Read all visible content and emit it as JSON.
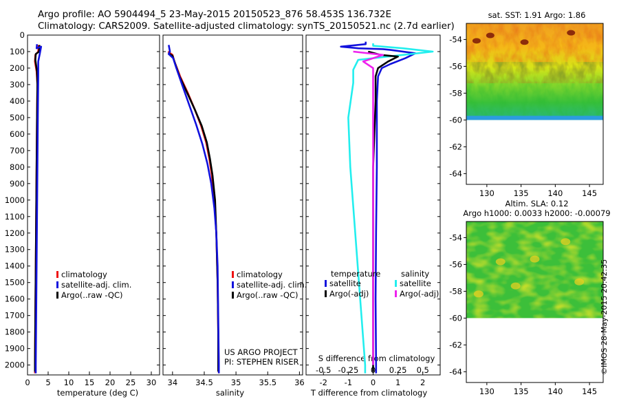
{
  "header": {
    "title_line1": "Argo profile: AO 5904494_5 23-May-2015 20150523_876 58.453S 136.732E",
    "title_line2": "Climatology: CARS2009. Satellite-adjusted climatology: synTS_20150521.nc (2.7d earlier)"
  },
  "credit": "©IMOS 28-May-2015 20:42:35",
  "colors": {
    "climatology": "#ee1111",
    "satellite": "#1111dd",
    "argo": "#000000",
    "sal_satellite": "#22eeee",
    "sal_argo": "#ee22ee"
  },
  "chart_data": [
    {
      "id": "temperature",
      "type": "line",
      "xlabel": "temperature (deg C)",
      "xlim": [
        0,
        32
      ],
      "xticks": [
        0,
        5,
        10,
        15,
        20,
        25,
        30
      ],
      "ylim": [
        2060,
        0
      ],
      "yticks": [
        0,
        100,
        200,
        300,
        400,
        500,
        600,
        700,
        800,
        900,
        1000,
        1100,
        1200,
        1300,
        1400,
        1500,
        1600,
        1700,
        1800,
        1900,
        2000
      ],
      "legend": [
        "climatology",
        "satellite-adj. clim.",
        "Argo(..raw -QC)"
      ],
      "series": [
        {
          "name": "climatology",
          "color": "#ee1111",
          "points": [
            [
              2.7,
              60
            ],
            [
              2.6,
              100
            ],
            [
              1.9,
              120
            ],
            [
              1.8,
              160
            ],
            [
              2.2,
              220
            ],
            [
              2.4,
              300
            ],
            [
              2.3,
              500
            ],
            [
              2.2,
              800
            ],
            [
              2.1,
              1100
            ],
            [
              2.0,
              1400
            ],
            [
              1.9,
              1700
            ],
            [
              1.8,
              2000
            ],
            [
              1.8,
              2050
            ]
          ]
        },
        {
          "name": "Argo(..raw -QC)",
          "color": "#000000",
          "points": [
            [
              2.9,
              60
            ],
            [
              2.8,
              100
            ],
            [
              2.0,
              115
            ],
            [
              1.9,
              150
            ],
            [
              2.3,
              220
            ],
            [
              2.4,
              300
            ],
            [
              2.3,
              500
            ],
            [
              2.2,
              800
            ],
            [
              2.1,
              1100
            ],
            [
              2.0,
              1400
            ],
            [
              1.9,
              1700
            ],
            [
              1.8,
              2000
            ],
            [
              1.8,
              2040
            ]
          ]
        },
        {
          "name": "satellite-adj. clim.",
          "color": "#1111dd",
          "points": [
            [
              2.3,
              55
            ],
            [
              2.2,
              80
            ],
            [
              3.3,
              70
            ],
            [
              3.0,
              110
            ],
            [
              2.6,
              160
            ],
            [
              2.6,
              250
            ],
            [
              2.5,
              500
            ],
            [
              2.4,
              800
            ],
            [
              2.3,
              1100
            ],
            [
              2.2,
              1400
            ],
            [
              2.1,
              1700
            ],
            [
              2.0,
              2000
            ],
            [
              2.0,
              2050
            ]
          ]
        }
      ]
    },
    {
      "id": "salinity",
      "type": "line",
      "xlabel": "salinity",
      "xlim": [
        33.85,
        36.05
      ],
      "xticks": [
        34,
        34.5,
        35,
        35.5,
        36
      ],
      "ylim": [
        2060,
        0
      ],
      "legend": [
        "climatology",
        "satellite-adj. clim.",
        "Argo(..raw -QC)"
      ],
      "annotation": [
        "US ARGO PROJECT",
        "PI: STEPHEN RISER"
      ],
      "series": [
        {
          "name": "climatology",
          "color": "#ee1111",
          "points": [
            [
              33.93,
              100
            ],
            [
              34.0,
              120
            ],
            [
              34.03,
              160
            ],
            [
              34.12,
              250
            ],
            [
              34.24,
              350
            ],
            [
              34.35,
              450
            ],
            [
              34.45,
              550
            ],
            [
              34.53,
              650
            ],
            [
              34.58,
              750
            ],
            [
              34.62,
              850
            ],
            [
              34.66,
              1000
            ],
            [
              34.69,
              1200
            ],
            [
              34.71,
              1500
            ],
            [
              34.72,
              1800
            ],
            [
              34.73,
              2050
            ]
          ]
        },
        {
          "name": "Argo(..raw -QC)",
          "color": "#000000",
          "points": [
            [
              33.93,
              110
            ],
            [
              34.0,
              125
            ],
            [
              34.03,
              160
            ],
            [
              34.11,
              250
            ],
            [
              34.23,
              350
            ],
            [
              34.35,
              450
            ],
            [
              34.46,
              550
            ],
            [
              34.54,
              650
            ],
            [
              34.59,
              750
            ],
            [
              34.63,
              850
            ],
            [
              34.67,
              1000
            ],
            [
              34.69,
              1200
            ],
            [
              34.71,
              1500
            ],
            [
              34.72,
              1800
            ],
            [
              34.72,
              2040
            ]
          ]
        },
        {
          "name": "satellite-adj. clim.",
          "color": "#1111dd",
          "points": [
            [
              33.94,
              60
            ],
            [
              33.96,
              100
            ],
            [
              33.94,
              115
            ],
            [
              34.01,
              140
            ],
            [
              34.06,
              200
            ],
            [
              34.15,
              300
            ],
            [
              34.26,
              420
            ],
            [
              34.37,
              540
            ],
            [
              34.47,
              660
            ],
            [
              34.55,
              780
            ],
            [
              34.61,
              900
            ],
            [
              34.66,
              1050
            ],
            [
              34.69,
              1200
            ],
            [
              34.71,
              1400
            ],
            [
              34.72,
              1700
            ],
            [
              34.73,
              2000
            ],
            [
              34.73,
              2050
            ]
          ]
        }
      ]
    },
    {
      "id": "difference",
      "type": "line",
      "xlabel": "T difference from climatology",
      "xlabel_top": "S difference from climatology",
      "xlim": [
        -2.7,
        2.7
      ],
      "xticks": [
        -2,
        -1,
        0,
        1,
        2
      ],
      "xticks_top": [
        -0.5,
        -0.25,
        0,
        0.25,
        0.5
      ],
      "ylim": [
        2060,
        0
      ],
      "legend_temperature": {
        "heading": "temperature",
        "items": [
          "satellite",
          "Argo(-adj)"
        ]
      },
      "legend_salinity": {
        "heading": "salinity",
        "items": [
          "satellite",
          "Argo(-adj)"
        ]
      },
      "series": [
        {
          "name": "satellite",
          "group": "temperature",
          "color": "#1111dd",
          "points": [
            [
              -0.3,
              40
            ],
            [
              -0.3,
              55
            ],
            [
              -1.3,
              70
            ],
            [
              -0.6,
              80
            ],
            [
              0.4,
              85
            ],
            [
              0.7,
              90
            ],
            [
              1.7,
              110
            ],
            [
              1.3,
              140
            ],
            [
              0.7,
              175
            ],
            [
              0.35,
              200
            ],
            [
              0.2,
              250
            ],
            [
              0.15,
              400
            ],
            [
              0.15,
              800
            ],
            [
              0.12,
              1200
            ],
            [
              0.1,
              1600
            ],
            [
              0.12,
              2000
            ],
            [
              0.12,
              2050
            ]
          ]
        },
        {
          "name": "satellite",
          "group": "salinity",
          "color": "#22eeee",
          "points": [
            [
              0.0,
              50
            ],
            [
              0.0,
              65
            ],
            [
              0.3,
              80
            ],
            [
              0.6,
              100
            ],
            [
              0.3,
              120
            ],
            [
              -0.15,
              150
            ],
            [
              -0.2,
              210
            ],
            [
              -0.2,
              290
            ],
            [
              -0.25,
              500
            ],
            [
              -0.23,
              800
            ],
            [
              -0.18,
              1200
            ],
            [
              -0.13,
              1600
            ],
            [
              -0.08,
              2000
            ],
            [
              -0.08,
              2050
            ]
          ]
        },
        {
          "name": "Argo(-adj)",
          "group": "temperature",
          "color": "#000000",
          "points": [
            [
              -0.2,
              100
            ],
            [
              0.3,
              120
            ],
            [
              1.0,
              130
            ],
            [
              0.6,
              160
            ],
            [
              0.2,
              200
            ],
            [
              0.1,
              250
            ],
            [
              0.1,
              400
            ],
            [
              0.0,
              800
            ],
            [
              0.0,
              1200
            ],
            [
              0.0,
              1600
            ],
            [
              0.0,
              2000
            ],
            [
              0.0,
              2040
            ]
          ]
        },
        {
          "name": "Argo(-adj)",
          "group": "salinity",
          "color": "#ee22ee",
          "points": [
            [
              -0.2,
              100
            ],
            [
              0.1,
              120
            ],
            [
              -0.1,
              160
            ],
            [
              0.0,
              200
            ],
            [
              0.0,
              400
            ],
            [
              0.0,
              800
            ],
            [
              0.0,
              1200
            ],
            [
              0.0,
              1600
            ],
            [
              0.0,
              2000
            ]
          ]
        }
      ]
    },
    {
      "id": "sst_map",
      "type": "heatmap",
      "title": "sat. SST: 1.91  Argo: 1.86",
      "xlim": [
        127,
        147
      ],
      "ylim": [
        -64.8,
        -52.8
      ],
      "data_extent_lat": [
        -60,
        -52.8
      ],
      "xticks": [
        130,
        135,
        140,
        145
      ],
      "yticks": [
        -54,
        -56,
        -58,
        -60,
        -62,
        -64
      ],
      "palette": "jet"
    },
    {
      "id": "sla_map",
      "type": "heatmap",
      "title_line1": "Altim. SLA: 0.12",
      "title_line2": "Argo h1000: 0.0033 h2000: -0.00079",
      "xlim": [
        127,
        147
      ],
      "ylim": [
        -64.8,
        -52.8
      ],
      "data_extent_lat": [
        -60,
        -52.8
      ],
      "xticks": [
        130,
        135,
        140,
        145
      ],
      "yticks": [
        -54,
        -56,
        -58,
        -60,
        -62,
        -64
      ],
      "palette": "jet"
    }
  ]
}
